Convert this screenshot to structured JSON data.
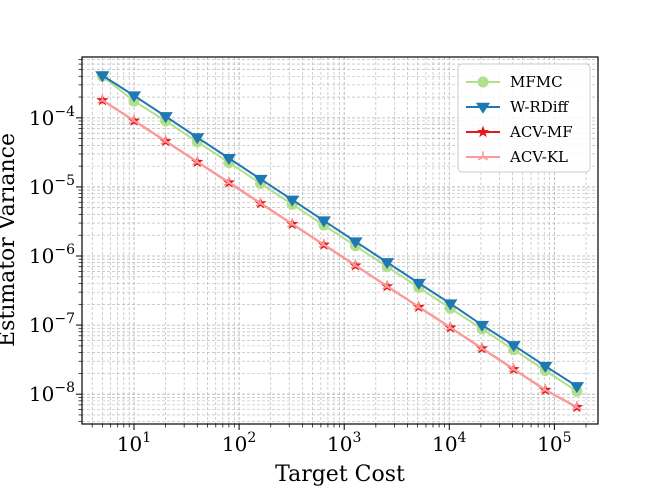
{
  "chart_data": {
    "type": "line",
    "title": "",
    "xlabel": "Target Cost",
    "ylabel": "Estimator Variance",
    "xscale": "log",
    "yscale": "log",
    "xlim": [
      3.2,
      260000
    ],
    "ylim": [
      3.7e-09,
      0.00076
    ],
    "grid": true,
    "legend_position": "upper right",
    "x_ticks": [
      {
        "value": 10,
        "base": "10",
        "exp": "1"
      },
      {
        "value": 100,
        "base": "10",
        "exp": "2"
      },
      {
        "value": 1000,
        "base": "10",
        "exp": "3"
      },
      {
        "value": 10000,
        "base": "10",
        "exp": "4"
      },
      {
        "value": 100000,
        "base": "10",
        "exp": "5"
      }
    ],
    "y_ticks": [
      {
        "value": 1e-08,
        "base": "10",
        "exp": "−8"
      },
      {
        "value": 1e-07,
        "base": "10",
        "exp": "−7"
      },
      {
        "value": 1e-06,
        "base": "10",
        "exp": "−6"
      },
      {
        "value": 1e-05,
        "base": "10",
        "exp": "−5"
      },
      {
        "value": 0.0001,
        "base": "10",
        "exp": "−4"
      }
    ],
    "x": [
      5,
      10,
      20,
      40,
      80,
      160,
      320,
      640,
      1280,
      2560,
      5120,
      10240,
      20480,
      40960,
      81920,
      163840
    ],
    "series": [
      {
        "name": "MFMC",
        "color": "#b2df8a",
        "marker": "circle",
        "values": [
          0.0004,
          0.000175,
          9e-05,
          4.5e-05,
          2.25e-05,
          1.12e-05,
          5.6e-06,
          2.8e-06,
          1.4e-06,
          7e-07,
          3.5e-07,
          1.75e-07,
          8.8e-08,
          4.4e-08,
          2.2e-08,
          1.1e-08
        ]
      },
      {
        "name": "W-RDiff",
        "color": "#1f78b4",
        "marker": "triangle-down",
        "values": [
          0.00041,
          0.00021,
          0.000105,
          5.2e-05,
          2.6e-05,
          1.3e-05,
          6.5e-06,
          3.25e-06,
          1.62e-06,
          8.1e-07,
          4.05e-07,
          2.05e-07,
          1e-07,
          5.1e-08,
          2.55e-08,
          1.3e-08
        ]
      },
      {
        "name": "ACV-MF",
        "color": "#e31a1c",
        "marker": "star",
        "values": [
          0.00018,
          9.1e-05,
          4.6e-05,
          2.3e-05,
          1.16e-05,
          5.8e-06,
          2.9e-06,
          1.46e-06,
          7.3e-07,
          3.65e-07,
          1.83e-07,
          9.2e-08,
          4.6e-08,
          2.3e-08,
          1.15e-08,
          6.5e-09
        ]
      },
      {
        "name": "ACV-KL",
        "color": "#fb9a99",
        "marker": "tri",
        "values": [
          0.00018,
          9.1e-05,
          4.6e-05,
          2.3e-05,
          1.16e-05,
          5.8e-06,
          2.9e-06,
          1.46e-06,
          7.3e-07,
          3.65e-07,
          1.83e-07,
          9.2e-08,
          4.6e-08,
          2.3e-08,
          1.15e-08,
          6.5e-09
        ]
      }
    ]
  }
}
